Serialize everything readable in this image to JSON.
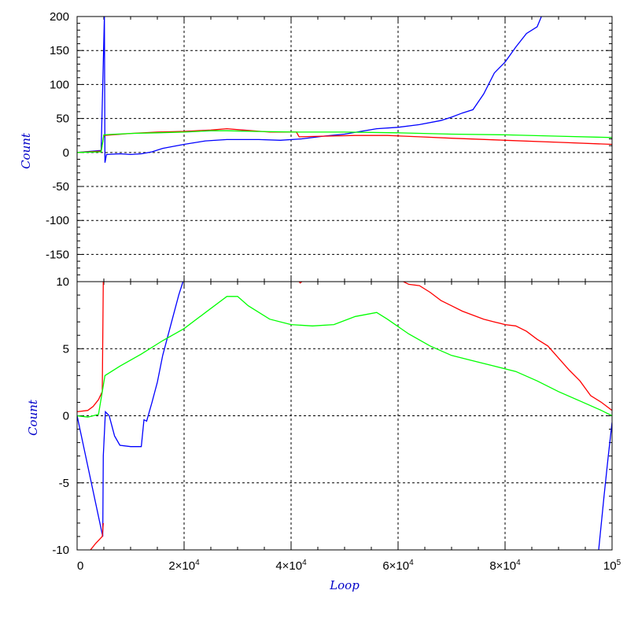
{
  "chart_data": [
    {
      "type": "line",
      "panel": "top",
      "xlabel": "",
      "ylabel": "Count",
      "xlim": [
        0,
        100000
      ],
      "ylim": [
        -190,
        200
      ],
      "y_ticks": [
        200,
        150,
        100,
        50,
        0,
        -50,
        -100,
        -150
      ],
      "y_tick_labels": [
        "200",
        "150",
        "100",
        "50",
        "0",
        "-50",
        "-100",
        "-150"
      ],
      "grid": true,
      "series": [
        {
          "color": "#0000ff",
          "points": [
            [
              0,
              0
            ],
            [
              4500,
              3
            ],
            [
              5100,
              200
            ],
            [
              5200,
              -15
            ],
            [
              5500,
              -3
            ],
            [
              8000,
              -2
            ],
            [
              10000,
              -3
            ],
            [
              12000,
              -2
            ],
            [
              14000,
              1
            ],
            [
              16000,
              6
            ],
            [
              20000,
              12
            ],
            [
              24000,
              17
            ],
            [
              28000,
              19
            ],
            [
              34000,
              19
            ],
            [
              38000,
              18
            ],
            [
              42000,
              20
            ],
            [
              46000,
              24
            ],
            [
              50000,
              27
            ],
            [
              56000,
              35
            ],
            [
              60000,
              37
            ],
            [
              64000,
              41
            ],
            [
              68000,
              47
            ],
            [
              70000,
              52
            ],
            [
              72000,
              58
            ],
            [
              74000,
              63
            ],
            [
              76000,
              86
            ],
            [
              78000,
              117
            ],
            [
              80000,
              133
            ],
            [
              82000,
              155
            ],
            [
              84000,
              175
            ],
            [
              86000,
              185
            ],
            [
              86800,
              200
            ]
          ]
        },
        {
          "color": "#ff0000",
          "points": [
            [
              0,
              0
            ],
            [
              4500,
              2
            ],
            [
              5000,
              25
            ],
            [
              10000,
              28
            ],
            [
              15000,
              30
            ],
            [
              20000,
              31
            ],
            [
              25000,
              33
            ],
            [
              28000,
              35
            ],
            [
              31000,
              33
            ],
            [
              36000,
              30
            ],
            [
              41000,
              30
            ],
            [
              41500,
              23
            ],
            [
              46000,
              24
            ],
            [
              52000,
              25
            ],
            [
              58000,
              25
            ],
            [
              64000,
              23
            ],
            [
              70000,
              21
            ],
            [
              80000,
              18
            ],
            [
              90000,
              15
            ],
            [
              100000,
              12
            ]
          ]
        },
        {
          "color": "#00ff00",
          "points": [
            [
              0,
              0
            ],
            [
              4500,
              1
            ],
            [
              5000,
              26
            ],
            [
              10000,
              28
            ],
            [
              15000,
              29
            ],
            [
              20000,
              30
            ],
            [
              25000,
              32
            ],
            [
              28000,
              32
            ],
            [
              33000,
              31
            ],
            [
              41000,
              30
            ],
            [
              45000,
              30
            ],
            [
              50000,
              30
            ],
            [
              60000,
              29
            ],
            [
              70000,
              27
            ],
            [
              80000,
              26
            ],
            [
              90000,
              24
            ],
            [
              100000,
              22
            ]
          ]
        }
      ]
    },
    {
      "type": "line",
      "panel": "bottom",
      "xlabel": "Loop",
      "ylabel": "Count",
      "xlim": [
        0,
        100000
      ],
      "ylim": [
        -10,
        10
      ],
      "x_ticks": [
        0,
        20000,
        40000,
        60000,
        80000,
        100000
      ],
      "x_tick_labels": [
        {
          "base": "0",
          "exp": ""
        },
        {
          "base": "2×10",
          "exp": "4"
        },
        {
          "base": "4×10",
          "exp": "4"
        },
        {
          "base": "6×10",
          "exp": "4"
        },
        {
          "base": "8×10",
          "exp": "4"
        },
        {
          "base": "10",
          "exp": "5"
        }
      ],
      "y_ticks": [
        10,
        5,
        0,
        -5,
        -10
      ],
      "y_tick_labels": [
        "10",
        "5",
        "0",
        "-5",
        "-10"
      ],
      "grid": true,
      "series": [
        {
          "color": "#0000ff",
          "points": [
            [
              0,
              0
            ],
            [
              4800,
              -9
            ],
            [
              4900,
              -3
            ],
            [
              5300,
              0.3
            ],
            [
              6000,
              0
            ],
            [
              7000,
              -1.5
            ],
            [
              8000,
              -2.2
            ],
            [
              10000,
              -2.3
            ],
            [
              12000,
              -2.3
            ],
            [
              12500,
              -0.3
            ],
            [
              13000,
              -0.4
            ],
            [
              14000,
              1
            ],
            [
              15000,
              2.5
            ],
            [
              16000,
              4.5
            ],
            [
              17000,
              6
            ],
            [
              18000,
              7.5
            ],
            [
              19000,
              9
            ],
            [
              19800,
              10
            ]
          ],
          "segments_extra": [
            [
              [
                97500,
                -10
              ],
              [
                98500,
                -6
              ],
              [
                99300,
                -3
              ],
              [
                100000,
                -0.5
              ]
            ]
          ]
        },
        {
          "color": "#ff0000",
          "points": [
            [
              0,
              0.3
            ],
            [
              2000,
              0.4
            ],
            [
              3000,
              0.7
            ],
            [
              4000,
              1.2
            ],
            [
              4700,
              1.8
            ],
            [
              4900,
              10
            ]
          ],
          "segments_extra": [
            [
              [
                2500,
                -10
              ],
              [
                3500,
                -9.5
              ],
              [
                4700,
                -9
              ],
              [
                4900,
                -8
              ]
            ],
            [
              [
                41500,
                10
              ],
              [
                41700,
                9.9
              ],
              [
                42000,
                10
              ]
            ],
            [
              [
                61000,
                10
              ],
              [
                62000,
                9.8
              ],
              [
                64000,
                9.7
              ],
              [
                66000,
                9.2
              ],
              [
                68000,
                8.6
              ],
              [
                70000,
                8.2
              ],
              [
                72000,
                7.8
              ],
              [
                74000,
                7.5
              ],
              [
                76000,
                7.2
              ],
              [
                78000,
                7.0
              ],
              [
                80000,
                6.8
              ],
              [
                82000,
                6.7
              ],
              [
                84000,
                6.3
              ],
              [
                86000,
                5.7
              ],
              [
                88000,
                5.2
              ],
              [
                90000,
                4.3
              ],
              [
                92000,
                3.4
              ],
              [
                94000,
                2.6
              ],
              [
                96000,
                1.5
              ],
              [
                98000,
                1.0
              ],
              [
                100000,
                0.4
              ]
            ]
          ]
        },
        {
          "color": "#00ff00",
          "points": [
            [
              0,
              0
            ],
            [
              2000,
              -0.1
            ],
            [
              4000,
              0.1
            ],
            [
              5200,
              3
            ],
            [
              8000,
              3.7
            ],
            [
              12000,
              4.6
            ],
            [
              16000,
              5.6
            ],
            [
              20000,
              6.5
            ],
            [
              24000,
              7.7
            ],
            [
              28000,
              8.9
            ],
            [
              30000,
              8.9
            ],
            [
              32000,
              8.2
            ],
            [
              36000,
              7.2
            ],
            [
              40000,
              6.8
            ],
            [
              44000,
              6.7
            ],
            [
              48000,
              6.8
            ],
            [
              52000,
              7.4
            ],
            [
              56000,
              7.7
            ],
            [
              58000,
              7.2
            ],
            [
              62000,
              6.1
            ],
            [
              66000,
              5.2
            ],
            [
              70000,
              4.5
            ],
            [
              74000,
              4.1
            ],
            [
              78000,
              3.7
            ],
            [
              82000,
              3.3
            ],
            [
              86000,
              2.6
            ],
            [
              90000,
              1.8
            ],
            [
              94000,
              1.1
            ],
            [
              98000,
              0.4
            ],
            [
              100000,
              0
            ]
          ]
        }
      ]
    }
  ]
}
